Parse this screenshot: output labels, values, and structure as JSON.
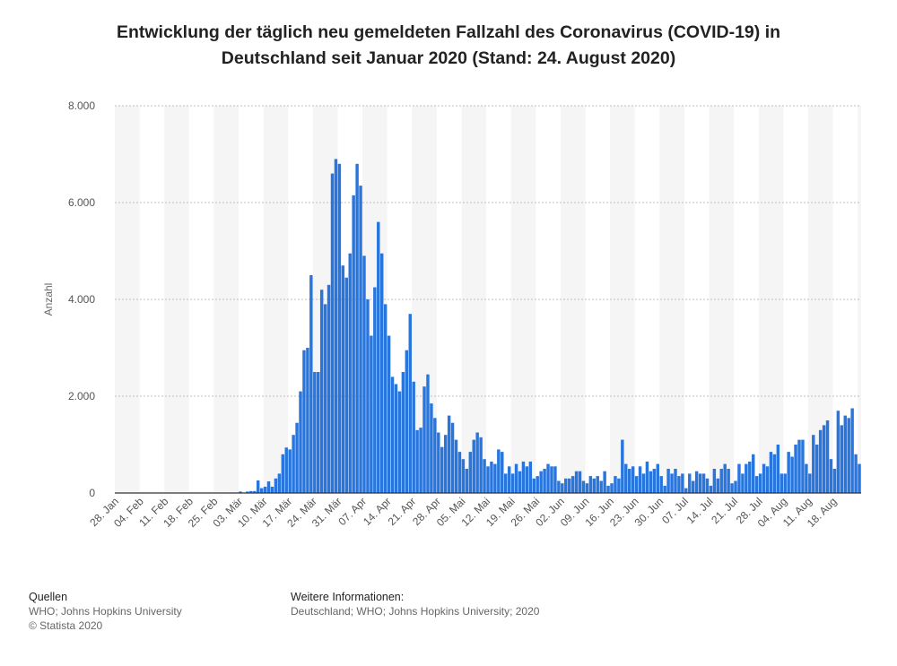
{
  "title": {
    "line1": "Entwicklung der täglich neu gemeldeten Fallzahl des Coronavirus (COVID-19) in",
    "line2": "Deutschland seit Januar 2020 (Stand: 24. August 2020)"
  },
  "footer": {
    "sources_heading": "Quellen",
    "sources_line1": "WHO; Johns Hopkins University",
    "sources_line2": "© Statista 2020",
    "info_heading": "Weitere Informationen:",
    "info_line1": "Deutschland; WHO; Johns Hopkins University; 2020"
  },
  "colors": {
    "bar": "#2876dd",
    "band": "#f5f5f5",
    "grid": "#bfbfbf",
    "text": "#555555"
  },
  "chart_data": {
    "type": "bar",
    "title": "Entwicklung der täglich neu gemeldeten Fallzahl des Coronavirus (COVID-19) in Deutschland seit Januar 2020 (Stand: 24. August 2020)",
    "ylabel": "Anzahl",
    "xlabel": "",
    "ylim": [
      0,
      8000
    ],
    "y_ticks": [
      0,
      2000,
      4000,
      6000,
      8000
    ],
    "y_tick_labels": [
      "0",
      "2.000",
      "4.000",
      "6.000",
      "8.000"
    ],
    "x_tick_labels": [
      "28. Jan",
      "04. Feb",
      "11. Feb",
      "18. Feb",
      "25. Feb",
      "03. Mär",
      "10. Mär",
      "17. Mär",
      "24. Mär",
      "31. Mär",
      "07. Apr",
      "14. Apr",
      "21. Apr",
      "28. Apr",
      "05. Mai",
      "12. Mai",
      "19. Mai",
      "26. Mai",
      "02. Jun",
      "09. Jun",
      "16. Jun",
      "23. Jun",
      "30. Jun",
      "07. Jul",
      "14. Jul",
      "21. Jul",
      "28. Jul",
      "04. Aug",
      "11. Aug",
      "18. Aug"
    ],
    "grid": true,
    "series": [
      {
        "values": [
          4,
          0,
          0,
          0,
          0,
          0,
          0,
          0,
          0,
          0,
          2,
          0,
          0,
          0,
          0,
          0,
          0,
          0,
          0,
          0,
          0,
          0,
          0,
          0,
          0,
          0,
          0,
          0,
          0,
          0,
          0,
          0,
          0,
          10,
          10,
          30,
          4,
          30,
          40,
          40,
          260,
          100,
          130,
          240,
          130,
          300,
          400,
          800,
          940,
          900,
          1200,
          1450,
          2100,
          2950,
          3000,
          4500,
          2500,
          2500,
          4200,
          3900,
          4300,
          6600,
          6900,
          6800,
          4700,
          4450,
          4950,
          6150,
          6800,
          6350,
          4900,
          4000,
          3250,
          4250,
          5600,
          4950,
          3900,
          3250,
          2400,
          2250,
          2100,
          2500,
          2950,
          3700,
          2300,
          1300,
          1350,
          2200,
          2450,
          1850,
          1550,
          1250,
          950,
          1200,
          1600,
          1450,
          1100,
          850,
          700,
          500,
          850,
          1100,
          1250,
          1150,
          700,
          550,
          650,
          600,
          900,
          850,
          400,
          550,
          400,
          600,
          450,
          650,
          550,
          650,
          300,
          350,
          450,
          500,
          600,
          550,
          550,
          250,
          200,
          300,
          300,
          350,
          450,
          450,
          250,
          200,
          350,
          300,
          350,
          250,
          450,
          150,
          200,
          350,
          300,
          1100,
          600,
          500,
          550,
          350,
          550,
          400,
          650,
          450,
          500,
          600,
          350,
          150,
          500,
          400,
          500,
          350,
          400,
          100,
          400,
          250,
          450,
          400,
          400,
          300,
          150,
          500,
          300,
          500,
          600,
          500,
          200,
          250,
          600,
          400,
          600,
          650,
          800,
          350,
          400,
          600,
          550,
          850,
          800,
          1000,
          400,
          400,
          850,
          750,
          1000,
          1100,
          1100,
          600,
          400,
          1200,
          1000,
          1300,
          1400,
          1500,
          700,
          500,
          1700,
          1400,
          1600,
          1550,
          1750,
          800,
          600
        ]
      }
    ]
  }
}
